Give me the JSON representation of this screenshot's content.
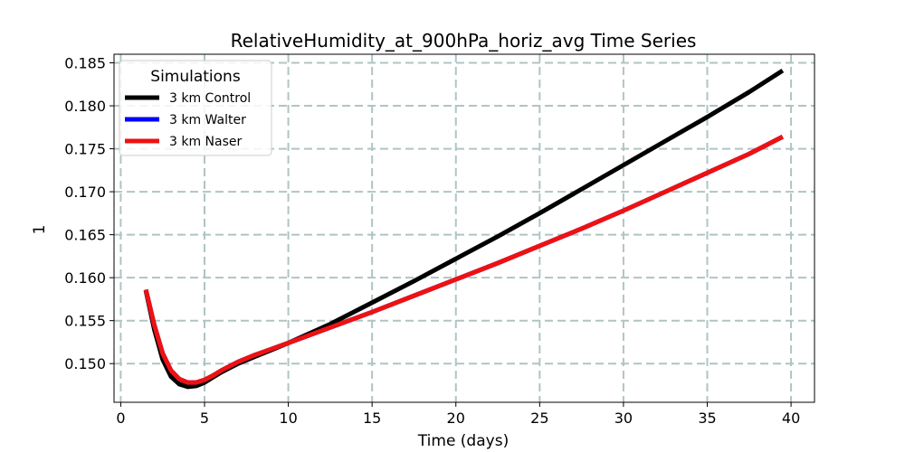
{
  "chart_data": {
    "type": "line",
    "title": "RelativeHumidity_at_900hPa_horiz_avg Time Series",
    "xlabel": "Time (days)",
    "ylabel": "1",
    "xlim": [
      -0.4,
      41.4
    ],
    "ylim": [
      0.1455,
      0.186
    ],
    "xticks": [
      0,
      5,
      10,
      15,
      20,
      25,
      30,
      35,
      40
    ],
    "yticks": [
      0.15,
      0.155,
      0.16,
      0.165,
      0.17,
      0.175,
      0.18,
      0.185
    ],
    "grid": true,
    "legend": {
      "title": "Simulations",
      "placement": "top-left"
    },
    "series": [
      {
        "name": "3 km Control",
        "color": "#000000",
        "x": [
          1.5,
          2.0,
          2.5,
          3.0,
          3.5,
          4.0,
          4.5,
          5.0,
          5.5,
          6.0,
          7.0,
          8.0,
          9.0,
          10.0,
          12.5,
          15.0,
          17.5,
          20.0,
          22.5,
          25.0,
          27.5,
          30.0,
          32.5,
          35.0,
          37.5,
          39.5
        ],
        "y": [
          0.1585,
          0.154,
          0.1505,
          0.1485,
          0.1476,
          0.1473,
          0.1474,
          0.1478,
          0.1484,
          0.149,
          0.15,
          0.1508,
          0.1516,
          0.1524,
          0.1546,
          0.1571,
          0.1596,
          0.1622,
          0.1648,
          0.1675,
          0.1703,
          0.1731,
          0.1759,
          0.1787,
          0.1816,
          0.1841
        ]
      },
      {
        "name": "3 km Walter",
        "color": "#0000ff",
        "x": [
          1.5,
          2.0,
          2.5,
          3.0,
          3.5,
          4.0,
          4.5,
          5.0,
          5.5,
          6.0,
          7.0,
          8.0,
          9.0,
          10.0,
          12.5,
          15.0,
          17.5,
          20.0,
          22.5,
          25.0,
          27.5,
          30.0,
          32.5,
          35.0,
          37.5,
          39.5
        ],
        "y": [
          0.1586,
          0.1545,
          0.1512,
          0.1492,
          0.1482,
          0.1478,
          0.1478,
          0.1481,
          0.1486,
          0.1492,
          0.1502,
          0.151,
          0.1517,
          0.1524,
          0.1542,
          0.156,
          0.1579,
          0.1598,
          0.1617,
          0.1637,
          0.1657,
          0.1678,
          0.17,
          0.1722,
          0.1744,
          0.1764
        ]
      },
      {
        "name": "3 km Naser",
        "color": "#ee1111",
        "x": [
          1.5,
          2.0,
          2.5,
          3.0,
          3.5,
          4.0,
          4.5,
          5.0,
          5.5,
          6.0,
          7.0,
          8.0,
          9.0,
          10.0,
          12.5,
          15.0,
          17.5,
          20.0,
          22.5,
          25.0,
          27.5,
          30.0,
          32.5,
          35.0,
          37.5,
          39.5
        ],
        "y": [
          0.1586,
          0.1545,
          0.1512,
          0.1492,
          0.1482,
          0.1478,
          0.1478,
          0.1481,
          0.1486,
          0.1492,
          0.1502,
          0.151,
          0.1517,
          0.1524,
          0.1542,
          0.156,
          0.1579,
          0.1598,
          0.1617,
          0.1637,
          0.1657,
          0.1678,
          0.17,
          0.1722,
          0.1744,
          0.1764
        ]
      }
    ]
  }
}
